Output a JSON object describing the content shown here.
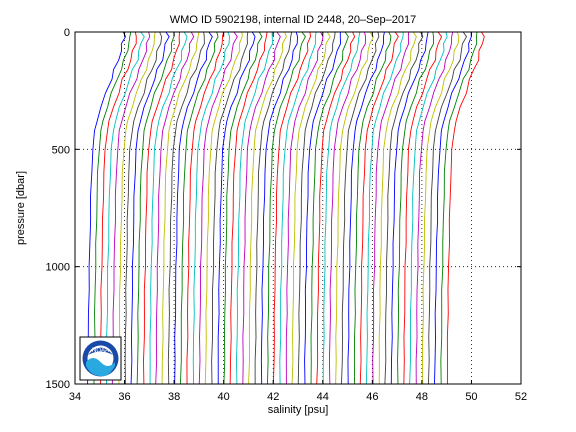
{
  "chart_data": {
    "type": "line",
    "title": "WMO ID 5902198, internal ID 2448, 20–Sep–2017",
    "xlabel": "salinity [psu]",
    "ylabel": "pressure [dbar]",
    "xlim": [
      34,
      52
    ],
    "ylim": [
      0,
      1500
    ],
    "y_reversed": true,
    "x_ticks": [
      34,
      36,
      38,
      40,
      42,
      44,
      46,
      48,
      50,
      52
    ],
    "y_ticks": [
      0,
      500,
      1000,
      1500
    ],
    "x_tick_labels": [
      "34",
      "36",
      "38",
      "40",
      "42",
      "44",
      "46",
      "48",
      "50",
      "52"
    ],
    "y_tick_labels": [
      "0",
      "500",
      "1000",
      "1500"
    ],
    "grid": "dotted",
    "offset_step": 0.25,
    "profile_count": 59,
    "first_profile_base_offset": 34.5,
    "base_profile": {
      "pressure": [
        0,
        20,
        50,
        80,
        120,
        160,
        200,
        260,
        320,
        380,
        420,
        500,
        600,
        700,
        800,
        900,
        1000,
        1100,
        1200,
        1300,
        1400,
        1500
      ],
      "salinity_anomaly": [
        1.45,
        1.5,
        1.42,
        1.35,
        1.25,
        1.1,
        0.95,
        0.75,
        0.55,
        0.38,
        0.3,
        0.22,
        0.17,
        0.14,
        0.12,
        0.1,
        0.08,
        0.06,
        0.05,
        0.04,
        0.03,
        0.02
      ]
    },
    "series_colors": [
      "#0000ff",
      "#008000",
      "#ff0000",
      "#00bfbf",
      "#bf00bf",
      "#bfbf00",
      "#404040"
    ]
  },
  "logo": {
    "text": "NOAA"
  }
}
